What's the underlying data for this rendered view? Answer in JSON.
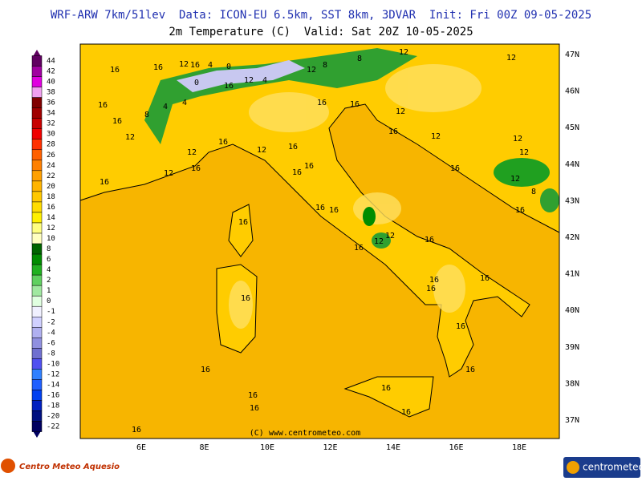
{
  "header": {
    "line1": "WRF-ARW 7km/51lev  Data: ICON-EU 6.5km, SST 8km, 3DVAR  Init: Fri 00Z 09-05-2025",
    "line2": "2m Temperature (C)  Valid: Sat 20Z 10-05-2025"
  },
  "colorbar": {
    "levels": [
      44,
      42,
      40,
      38,
      36,
      34,
      32,
      30,
      28,
      26,
      24,
      22,
      20,
      18,
      16,
      14,
      12,
      10,
      8,
      6,
      4,
      2,
      1,
      0,
      -1,
      -2,
      -4,
      -6,
      -8,
      -10,
      -12,
      -14,
      -16,
      -18,
      -20,
      -22
    ],
    "colors": [
      "#600060",
      "#a000a0",
      "#e000e0",
      "#f0a0f0",
      "#800000",
      "#a00000",
      "#c80000",
      "#f00000",
      "#ff3000",
      "#ff6000",
      "#ff8000",
      "#ffa000",
      "#ffb400",
      "#ffc800",
      "#ffdc00",
      "#fff000",
      "#ffff80",
      "#ffffc0",
      "#006400",
      "#008c00",
      "#20b020",
      "#60d060",
      "#a0e8a0",
      "#e0ffe0",
      "#f0f0ff",
      "#d0d0ff",
      "#b0b0f0",
      "#9090e0",
      "#7070d0",
      "#5050f0",
      "#3080ff",
      "#2060ff",
      "#0040f0",
      "#0020c0",
      "#001080",
      "#000060"
    ]
  },
  "map": {
    "lon_labels": [
      "6E",
      "8E",
      "10E",
      "12E",
      "14E",
      "16E",
      "18E"
    ],
    "lat_labels": [
      "47N",
      "46N",
      "45N",
      "44N",
      "43N",
      "42N",
      "41N",
      "40N",
      "39N",
      "38N",
      "37N"
    ],
    "contour_labels": [
      16,
      16,
      12,
      16,
      4,
      0,
      0,
      16,
      12,
      4,
      12,
      8,
      8,
      12,
      12,
      16,
      16,
      8,
      12,
      4,
      4,
      16,
      16,
      12,
      16,
      12,
      12,
      12,
      16,
      12,
      12,
      16,
      12,
      16,
      16,
      16,
      16,
      16,
      12,
      8,
      16,
      16,
      16,
      16,
      12,
      12,
      16,
      16,
      16,
      16,
      16,
      16,
      16,
      16,
      16,
      16,
      16,
      16,
      16,
      16
    ],
    "copyright": "(C) www.centrometeo.com"
  },
  "footer": {
    "left_logo": "Centro Meteo Aquesio",
    "right_logo": "centrometeo"
  }
}
